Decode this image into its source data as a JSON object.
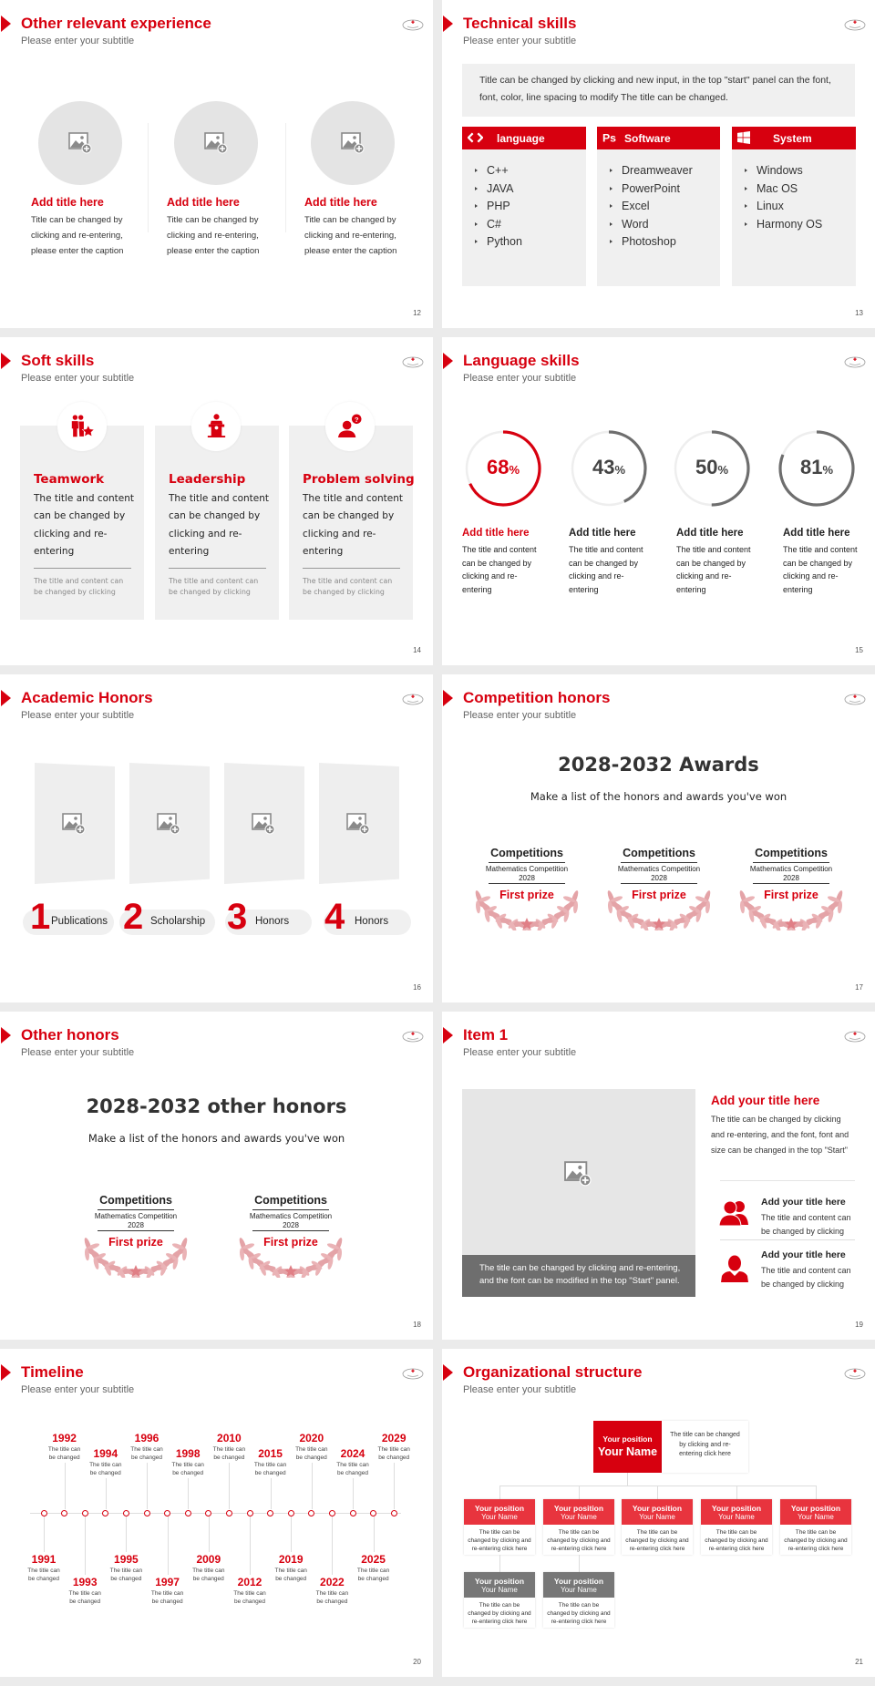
{
  "colors": {
    "accent": "#d7000f",
    "panel": "#f0f0f0",
    "dark_gray": "#6e6e6e",
    "org_red": "#e8343e",
    "org_gray": "#777777"
  },
  "subtitle": "Please enter your subtitle",
  "other_experience": {
    "title": "Other relevant experience",
    "page": "12",
    "items": [
      {
        "title": "Add title here",
        "text": "Title can be changed by clicking and re-entering, please enter the caption"
      },
      {
        "title": "Add title here",
        "text": "Title can be changed by clicking and re-entering, please enter the caption"
      },
      {
        "title": "Add title here",
        "text": "Title can be changed by clicking and re-entering, please enter the caption"
      }
    ]
  },
  "technical_skills": {
    "title": "Technical skills",
    "page": "13",
    "intro": "Title can be changed by clicking and new input, in the top \"start\" panel can the font, font, color, line spacing to modify The title can be changed.",
    "columns": [
      {
        "icon": "code-brackets-icon",
        "label": "language",
        "items": [
          "C++",
          "JAVA",
          "PHP",
          "C#",
          "Python"
        ]
      },
      {
        "icon": "photoshop-icon",
        "label": "Software",
        "items": [
          "Dreamweaver",
          "PowerPoint",
          "Excel",
          "Word",
          "Photoshop"
        ]
      },
      {
        "icon": "windows-icon",
        "label": "System",
        "items": [
          "Windows",
          "Mac OS",
          "Linux",
          "Harmony OS"
        ]
      }
    ]
  },
  "soft_skills": {
    "title": "Soft skills",
    "page": "14",
    "cards": [
      {
        "icon": "team-icon",
        "title": "Teamwork",
        "body": "The title and content can be changed by clicking and re-entering",
        "note": "The title and content can be changed by clicking"
      },
      {
        "icon": "podium-speaker-icon",
        "title": "Leadership",
        "body": "The title and content can be changed by clicking and re-entering",
        "note": "The title and content can be changed by clicking"
      },
      {
        "icon": "person-question-icon",
        "title": "Problem solving",
        "body": "The title and content can be changed by clicking and re-entering",
        "note": "The title and content can be changed by clicking"
      }
    ]
  },
  "language_skills": {
    "title": "Language skills",
    "page": "15",
    "percent_sign": "%",
    "items": [
      {
        "value": 68,
        "label": "68",
        "color": "#d7000f",
        "title": "Add title here",
        "body": "The title and content can be changed by clicking and re-entering"
      },
      {
        "value": 43,
        "label": "43",
        "color": "#6e6e6e",
        "title": "Add title here",
        "body": "The title and content can be changed by clicking and re-entering"
      },
      {
        "value": 50,
        "label": "50",
        "color": "#6e6e6e",
        "title": "Add title here",
        "body": "The title and content can be changed by clicking and re-entering"
      },
      {
        "value": 81,
        "label": "81",
        "color": "#6e6e6e",
        "title": "Add title here",
        "body": "The title and content can be changed by clicking and re-entering"
      }
    ]
  },
  "academic_honors": {
    "title": "Academic Honors",
    "page": "16",
    "items": [
      {
        "number": "1",
        "label": "Publications"
      },
      {
        "number": "2",
        "label": "Scholarship"
      },
      {
        "number": "3",
        "label": "Honors"
      },
      {
        "number": "4",
        "label": "Honors"
      }
    ]
  },
  "competition_honors": {
    "title": "Competition honors",
    "page": "17",
    "heading": "2028-2032 Awards",
    "subheading": "Make a list of the honors and awards you've won",
    "awards": [
      {
        "title": "Competitions",
        "event": "Mathematics Competition",
        "year": "2028",
        "prize": "First prize"
      },
      {
        "title": "Competitions",
        "event": "Mathematics Competition",
        "year": "2028",
        "prize": "First prize"
      },
      {
        "title": "Competitions",
        "event": "Mathematics Competition",
        "year": "2028",
        "prize": "First prize"
      }
    ]
  },
  "other_honors": {
    "title": "Other honors",
    "page": "18",
    "heading": "2028-2032 other honors",
    "subheading": "Make a list of the honors and awards you've won",
    "awards": [
      {
        "title": "Competitions",
        "event": "Mathematics Competition",
        "year": "2028",
        "prize": "First prize"
      },
      {
        "title": "Competitions",
        "event": "Mathematics Competition",
        "year": "2028",
        "prize": "First prize"
      }
    ]
  },
  "item1": {
    "title": "Item 1",
    "page": "19",
    "caption": "The title can be changed by clicking and re-entering, and the font can be modified in the top \"Start\" panel.",
    "main_title": "Add your title here",
    "main_text": "The title can be changed by clicking and re-entering, and the font, font and size can be changed in the top \"Start\"",
    "entries": [
      {
        "icon": "group-icon",
        "title": "Add your title here",
        "text": "The title and content can be changed by clicking"
      },
      {
        "icon": "person-icon",
        "title": "Add your title here",
        "text": "The title and content can be changed by clicking"
      }
    ]
  },
  "timeline": {
    "title": "Timeline",
    "page": "20",
    "events": [
      {
        "year": "1991",
        "text": "The title can be changed"
      },
      {
        "year": "1992",
        "text": "The title can be changed"
      },
      {
        "year": "1993",
        "text": "The title can be changed"
      },
      {
        "year": "1994",
        "text": "The title can be changed"
      },
      {
        "year": "1995",
        "text": "The title can be changed"
      },
      {
        "year": "1996",
        "text": "The title can be changed"
      },
      {
        "year": "1997",
        "text": "The title can be changed"
      },
      {
        "year": "1998",
        "text": "The title can be changed"
      },
      {
        "year": "2009",
        "text": "The title can be changed"
      },
      {
        "year": "2010",
        "text": "The title can be changed"
      },
      {
        "year": "2012",
        "text": "The title can be changed"
      },
      {
        "year": "2015",
        "text": "The title can be changed"
      },
      {
        "year": "2019",
        "text": "The title can be changed"
      },
      {
        "year": "2020",
        "text": "The title can be changed"
      },
      {
        "year": "2022",
        "text": "The title can be changed"
      },
      {
        "year": "2024",
        "text": "The title can be changed"
      },
      {
        "year": "2025",
        "text": "The title can be changed"
      },
      {
        "year": "2029",
        "text": "The title can be changed"
      }
    ]
  },
  "org": {
    "title": "Organizational structure",
    "page": "21",
    "top": {
      "position": "Your position",
      "name": "Your Name",
      "text": "The title can be changed by clicking and re-entering click here"
    },
    "level2": [
      {
        "position": "Your position",
        "name": "Your Name",
        "text": "The title can be changed by clicking and re-entering click here"
      },
      {
        "position": "Your position",
        "name": "Your Name",
        "text": "The title can be changed by clicking and re-entering click here"
      },
      {
        "position": "Your position",
        "name": "Your Name",
        "text": "The title can be changed by clicking and re-entering click here"
      },
      {
        "position": "Your position",
        "name": "Your Name",
        "text": "The title can be changed by clicking and re-entering click here"
      },
      {
        "position": "Your position",
        "name": "Your Name",
        "text": "The title can be changed by clicking and re-entering click here"
      }
    ],
    "level3": [
      {
        "position": "Your position",
        "name": "Your Name",
        "text": "The title can be changed by clicking and re-entering click here"
      },
      {
        "position": "Your position",
        "name": "Your Name",
        "text": "The title can be changed by clicking and re-entering click here"
      }
    ]
  }
}
